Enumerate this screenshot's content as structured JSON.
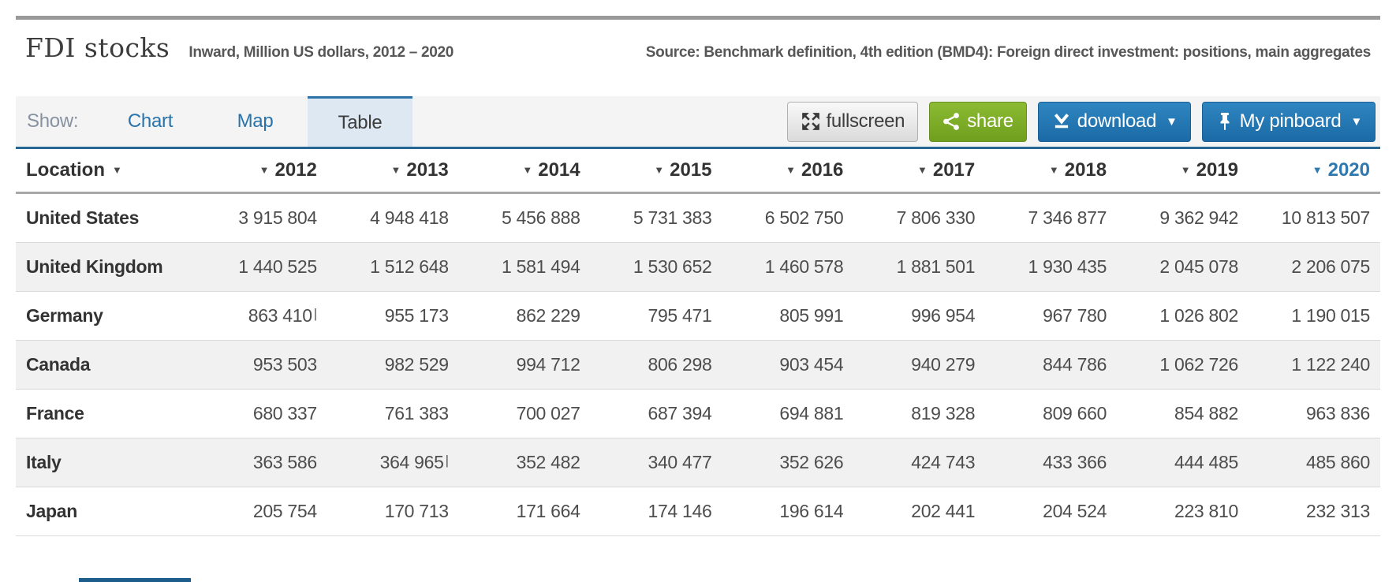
{
  "header": {
    "title": "FDI stocks",
    "subtitle": "Inward, Million US dollars, 2012 – 2020",
    "source": "Source: Benchmark definition, 4th edition (BMD4): Foreign direct investment: positions, main aggregates"
  },
  "toolbar": {
    "show_label": "Show:",
    "tabs": [
      {
        "label": "Chart",
        "active": false
      },
      {
        "label": "Map",
        "active": false
      },
      {
        "label": "Table",
        "active": true
      }
    ],
    "buttons": {
      "fullscreen": "fullscreen",
      "share": "share",
      "download": "download",
      "pinboard": "My pinboard",
      "caret": "▼"
    }
  },
  "colors": {
    "accent_blue": "#2b72a8",
    "toolbar_underline": "#266693",
    "active_tab_bg": "#dee8f2",
    "button_green": "#7aa827",
    "button_blue": "#2373ad",
    "active_sort_column": "#2e79b0",
    "row_stripe": "#f1f1f1"
  },
  "table": {
    "location_header": "Location",
    "sort_caret": "▼",
    "years": [
      "2012",
      "2013",
      "2014",
      "2015",
      "2016",
      "2017",
      "2018",
      "2019",
      "2020"
    ],
    "active_year": "2020",
    "break_flag": "|",
    "rows": [
      {
        "location": "United States",
        "values": [
          "3 915 804",
          "4 948 418",
          "5 456 888",
          "5 731 383",
          "6 502 750",
          "7 806 330",
          "7 346 877",
          "9 362 942",
          "10 813 507"
        ]
      },
      {
        "location": "United Kingdom",
        "values": [
          "1 440 525",
          "1 512 648",
          "1 581 494",
          "1 530 652",
          "1 460 578",
          "1 881 501",
          "1 930 435",
          "2 045 078",
          "2 206 075"
        ]
      },
      {
        "location": "Germany",
        "values": [
          "863 410",
          "955 173",
          "862 229",
          "795 471",
          "805 991",
          "996 954",
          "967 780",
          "1 026 802",
          "1 190 015"
        ],
        "flag_cols": [
          0
        ]
      },
      {
        "location": "Canada",
        "values": [
          "953 503",
          "982 529",
          "994 712",
          "806 298",
          "903 454",
          "940 279",
          "844 786",
          "1 062 726",
          "1 122 240"
        ]
      },
      {
        "location": "France",
        "values": [
          "680 337",
          "761 383",
          "700 027",
          "687 394",
          "694 881",
          "819 328",
          "809 660",
          "854 882",
          "963 836"
        ]
      },
      {
        "location": "Italy",
        "values": [
          "363 586",
          "364 965",
          "352 482",
          "340 477",
          "352 626",
          "424 743",
          "433 366",
          "444 485",
          "485 860"
        ],
        "flag_cols": [
          1
        ]
      },
      {
        "location": "Japan",
        "values": [
          "205 754",
          "170 713",
          "171 664",
          "174 146",
          "196 614",
          "202 441",
          "204 524",
          "223 810",
          "232 313"
        ]
      }
    ]
  }
}
